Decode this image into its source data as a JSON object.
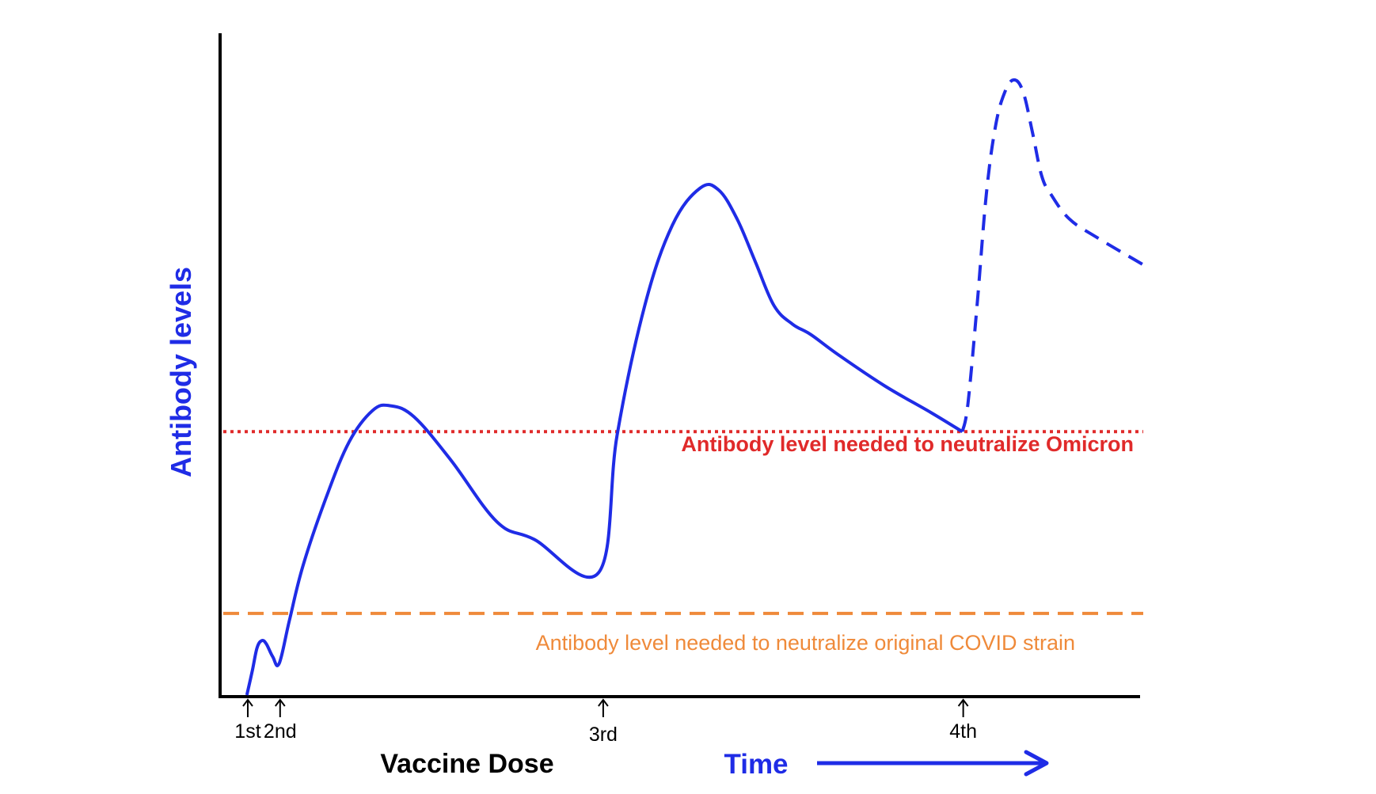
{
  "chart_data": {
    "type": "line",
    "title": "",
    "ylabel": "Antibody levels",
    "xlabel": "Vaccine Dose",
    "time_label": "Time",
    "ylim": [
      0,
      100
    ],
    "xlim": [
      0,
      100
    ],
    "grid": false,
    "doses": [
      {
        "label": "1st",
        "x": 3
      },
      {
        "label": "2nd",
        "x": 6.5
      },
      {
        "label": "3rd",
        "x": 41.5
      },
      {
        "label": "4th",
        "x": 80.5
      }
    ],
    "thresholds": [
      {
        "name": "omicron",
        "label": "Antibody level needed to neutralize Omicron",
        "y": 42.6,
        "style": "dotted",
        "color": "#e02a2a"
      },
      {
        "name": "original",
        "label": "Antibody level needed to neutralize original COVID strain",
        "y": 13.2,
        "style": "dashed",
        "color": "#ef8a3a"
      }
    ],
    "series": [
      {
        "style": "solid",
        "color": "#1f2ce6",
        "x": [
          2.9,
          3.5,
          4.0,
          4.5,
          5.0,
          5.7,
          6.4,
          7.5,
          9.0,
          11.5,
          14.0,
          16.5,
          18.4,
          21.0,
          25.0,
          30.0,
          34.0,
          41.0,
          43.0,
          46.0,
          49.0,
          52.0,
          54.0,
          56.0,
          58.0,
          60.0,
          62.0,
          64.0,
          67.0,
          72.0,
          77.0,
          80.4
        ],
        "y": [
          0.0,
          4.0,
          7.6,
          8.8,
          8.3,
          6.2,
          5.1,
          12.0,
          21.0,
          32.0,
          41.0,
          46.0,
          46.8,
          45.0,
          38.0,
          28.0,
          25.2,
          19.8,
          42.0,
          63.0,
          76.0,
          82.0,
          81.7,
          77.0,
          70.0,
          63.0,
          60.0,
          58.3,
          55.0,
          50.0,
          45.7,
          42.6
        ]
      },
      {
        "style": "dashed",
        "color": "#1f2ce6",
        "x": [
          80.4,
          81.0,
          82.0,
          83.0,
          84.0,
          85.0,
          86.0,
          87.0,
          88.0,
          89.0,
          90.0,
          92.0,
          95.0,
          100.0
        ],
        "y": [
          42.6,
          47.0,
          63.0,
          81.0,
          92.0,
          97.5,
          99.5,
          97.5,
          91.0,
          84.0,
          81.0,
          77.0,
          74.0,
          69.6
        ]
      }
    ]
  },
  "colors": {
    "axis": "#000000",
    "curve": "#1f2ce6",
    "omicron": "#e02a2a",
    "original": "#ef8a3a",
    "time": "#1f2ce6"
  }
}
